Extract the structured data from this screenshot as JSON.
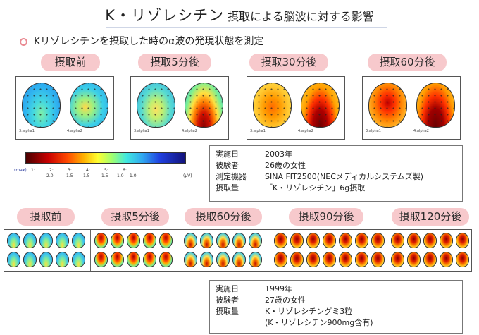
{
  "title": {
    "main": "K・リゾレシチン",
    "sub": "摂取による脳波に対する影響"
  },
  "subtitle": "KリゾレシチンをJ摂取した時のα波の発現状態を測定",
  "top_labels": [
    "摂取前",
    "摂取5分後",
    "摂取30分後",
    "摂取60分後"
  ],
  "top_panels": [
    {
      "captions": [
        "3:alpha1",
        "4:alpha2"
      ]
    },
    {
      "captions": [
        "3:alpha1",
        "4:alpha2"
      ]
    },
    {
      "captions": [
        "3:alpha1",
        "4:alpha2"
      ]
    },
    {
      "captions": [
        "3:alpha1",
        "4:alpha2"
      ]
    }
  ],
  "colorbar": {
    "max_label": "(max)",
    "ticks": [
      "1:",
      "2:",
      "3:",
      "4:",
      "5:",
      "6:"
    ],
    "values": [
      "2.0",
      "1.5",
      "1.5",
      "1.5",
      "1.0",
      "1.0"
    ],
    "unit": "(μV)"
  },
  "info1": [
    {
      "key": "実施日",
      "value": "2003年"
    },
    {
      "key": "被験者",
      "value": "26歳の女性"
    },
    {
      "key": "測定機器",
      "value": "SINA FIT2500(NECメディカルシステムズ製)"
    },
    {
      "key": "摂取量",
      "value": "「K・リゾレシチン」6g摂取"
    }
  ],
  "bottom_labels": [
    "摂取前",
    "摂取5分後",
    "摂取60分後",
    "摂取90分後",
    "摂取120分後"
  ],
  "info2": [
    {
      "key": "実施日",
      "value": "1999年"
    },
    {
      "key": "被験者",
      "value": "27歳の女性"
    },
    {
      "key": "摂取量",
      "value": "K・リゾレシチングミ3粒"
    },
    {
      "key": "",
      "value": "(K・リゾレシチン900mg含有)"
    }
  ],
  "colors": {
    "pill": "#f7c9cc",
    "bullet": "#e98a92",
    "rule": "#cfd6e6"
  }
}
